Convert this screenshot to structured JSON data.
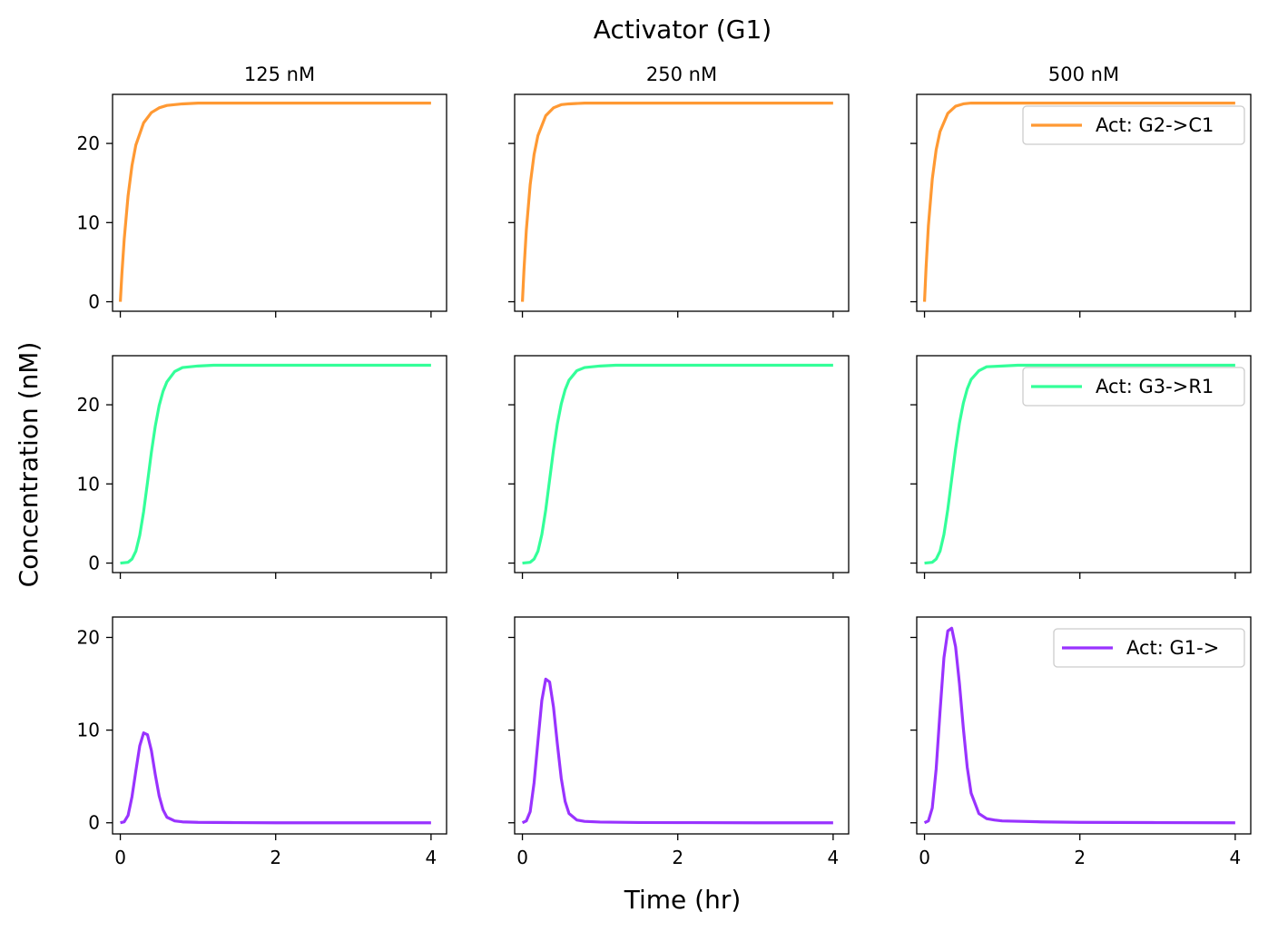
{
  "figure": {
    "suptitle": "Activator (G1)",
    "supxlabel": "Time (hr)",
    "supylabel": "Concentration (nM)"
  },
  "chart_data": {
    "type": "line",
    "layout": "3x3 grid, shared x and y per row",
    "column_titles": [
      "125 nM",
      "250 nM",
      "500 nM"
    ],
    "xlim": [
      -0.1,
      4.2
    ],
    "xticks": [
      0,
      2,
      4
    ],
    "rows": [
      {
        "series_name": "Act: G2->C1",
        "color": "#ff9933",
        "ylim": [
          -1.2,
          26.2
        ],
        "yticks": [
          0,
          10,
          20
        ],
        "legend_loc": "upper right (last column)",
        "panels": [
          {
            "x": [
              0,
              0.02,
              0.05,
              0.1,
              0.15,
              0.2,
              0.3,
              0.4,
              0.5,
              0.6,
              0.8,
              1.0,
              1.5,
              2,
              3,
              4
            ],
            "y": [
              0,
              3.5,
              7.9,
              13.4,
              17.2,
              19.8,
              22.6,
              23.9,
              24.5,
              24.8,
              25.0,
              25.1,
              25.1,
              25.1,
              25.1,
              25.1
            ]
          },
          {
            "x": [
              0,
              0.02,
              0.05,
              0.1,
              0.15,
              0.2,
              0.3,
              0.4,
              0.5,
              0.6,
              0.8,
              1.0,
              1.5,
              2,
              3,
              4
            ],
            "y": [
              0,
              4.0,
              9.0,
              14.8,
              18.6,
              21.0,
              23.5,
              24.5,
              24.9,
              25.0,
              25.1,
              25.1,
              25.1,
              25.1,
              25.1,
              25.1
            ]
          },
          {
            "x": [
              0,
              0.02,
              0.05,
              0.1,
              0.15,
              0.2,
              0.3,
              0.4,
              0.5,
              0.6,
              0.8,
              1.0,
              1.5,
              2,
              3,
              4
            ],
            "y": [
              0,
              4.3,
              9.6,
              15.5,
              19.2,
              21.5,
              23.8,
              24.7,
              25.0,
              25.1,
              25.1,
              25.1,
              25.1,
              25.1,
              25.1,
              25.1
            ]
          }
        ]
      },
      {
        "series_name": "Act: G3->R1",
        "color": "#33ff99",
        "ylim": [
          -1.2,
          26.2
        ],
        "yticks": [
          0,
          10,
          20
        ],
        "legend_loc": "upper right (last column)",
        "panels": [
          {
            "x": [
              0,
              0.1,
              0.15,
              0.2,
              0.25,
              0.3,
              0.35,
              0.4,
              0.45,
              0.5,
              0.55,
              0.6,
              0.7,
              0.8,
              1.0,
              1.2,
              1.5,
              2,
              3,
              4
            ],
            "y": [
              0,
              0.1,
              0.5,
              1.5,
              3.5,
              6.5,
              10.2,
              14.0,
              17.3,
              19.9,
              21.7,
              22.9,
              24.2,
              24.7,
              24.9,
              25.0,
              25.0,
              25.0,
              25.0,
              25.0
            ]
          },
          {
            "x": [
              0,
              0.1,
              0.15,
              0.2,
              0.25,
              0.3,
              0.35,
              0.4,
              0.45,
              0.5,
              0.55,
              0.6,
              0.7,
              0.8,
              1.0,
              1.2,
              1.5,
              2,
              3,
              4
            ],
            "y": [
              0,
              0.1,
              0.5,
              1.5,
              3.6,
              6.7,
              10.5,
              14.3,
              17.6,
              20.1,
              21.9,
              23.1,
              24.3,
              24.7,
              24.9,
              25.0,
              25.0,
              25.0,
              25.0,
              25.0
            ]
          },
          {
            "x": [
              0,
              0.1,
              0.15,
              0.2,
              0.25,
              0.3,
              0.35,
              0.4,
              0.45,
              0.5,
              0.55,
              0.6,
              0.7,
              0.8,
              1.0,
              1.2,
              1.5,
              2,
              3,
              4
            ],
            "y": [
              0,
              0.1,
              0.5,
              1.5,
              3.6,
              6.8,
              10.6,
              14.4,
              17.7,
              20.2,
              22.0,
              23.2,
              24.3,
              24.8,
              24.9,
              25.0,
              25.0,
              25.0,
              25.0,
              25.0
            ]
          }
        ]
      },
      {
        "series_name": "Act: G1->",
        "color": "#9933ff",
        "ylim": [
          -1.2,
          22.2
        ],
        "yticks": [
          0,
          10,
          20
        ],
        "legend_loc": "upper right (last column)",
        "panels": [
          {
            "x": [
              0,
              0.05,
              0.1,
              0.15,
              0.2,
              0.25,
              0.3,
              0.35,
              0.4,
              0.45,
              0.5,
              0.55,
              0.6,
              0.7,
              0.8,
              1.0,
              1.5,
              2,
              3,
              4
            ],
            "y": [
              0,
              0.1,
              0.8,
              2.8,
              5.6,
              8.3,
              9.7,
              9.5,
              7.8,
              5.2,
              2.9,
              1.4,
              0.6,
              0.2,
              0.1,
              0.05,
              0.02,
              0,
              0,
              0
            ]
          },
          {
            "x": [
              0,
              0.05,
              0.1,
              0.15,
              0.2,
              0.25,
              0.3,
              0.35,
              0.4,
              0.45,
              0.5,
              0.55,
              0.6,
              0.7,
              0.8,
              1.0,
              1.5,
              2,
              3,
              4
            ],
            "y": [
              0,
              0.2,
              1.2,
              4.3,
              8.8,
              13.2,
              15.5,
              15.2,
              12.5,
              8.5,
              4.8,
              2.3,
              1.0,
              0.3,
              0.15,
              0.08,
              0.03,
              0.02,
              0,
              0
            ]
          },
          {
            "x": [
              0,
              0.05,
              0.1,
              0.15,
              0.2,
              0.25,
              0.3,
              0.35,
              0.4,
              0.45,
              0.5,
              0.55,
              0.6,
              0.7,
              0.8,
              0.9,
              1.0,
              1.5,
              2,
              3,
              4
            ],
            "y": [
              0,
              0.2,
              1.6,
              5.8,
              12.0,
              17.8,
              20.7,
              21.0,
              19.0,
              15.0,
              10.2,
              6.0,
              3.2,
              1.0,
              0.45,
              0.3,
              0.2,
              0.1,
              0.05,
              0.02,
              0
            ]
          }
        ]
      }
    ]
  }
}
